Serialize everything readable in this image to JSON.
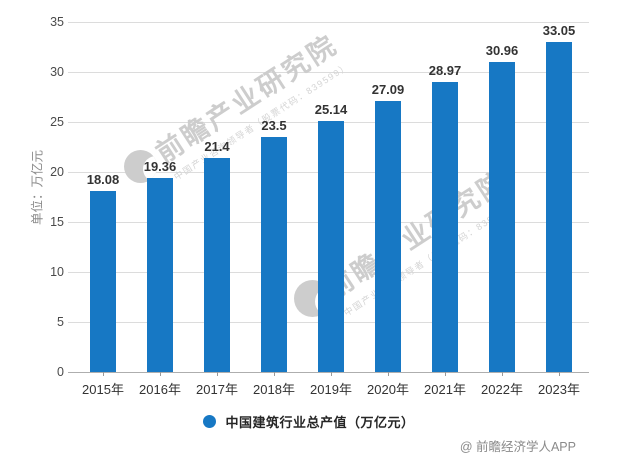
{
  "chart_data": {
    "type": "bar",
    "categories": [
      "2015年",
      "2016年",
      "2017年",
      "2018年",
      "2019年",
      "2020年",
      "2021年",
      "2022年",
      "2023年"
    ],
    "values": [
      18.08,
      19.36,
      21.4,
      23.5,
      25.14,
      27.09,
      28.97,
      30.96,
      33.05
    ],
    "title": "",
    "xlabel": "",
    "ylabel": "单位：万亿元",
    "ylim": [
      0,
      35
    ],
    "yticks": [
      0,
      5,
      10,
      15,
      20,
      25,
      30,
      35
    ],
    "grid": true,
    "legend_position": "bottom",
    "legend": "中国建筑行业总产值（万亿元）",
    "bar_color": "#1778C4"
  },
  "watermark": {
    "logo": "qianzhan-logo",
    "title": "前瞻产业研究院",
    "subtitle": "中国产业咨询领导者（股票代码：839599）"
  },
  "footer": {
    "attribution": "@ 前瞻经济学人APP"
  }
}
